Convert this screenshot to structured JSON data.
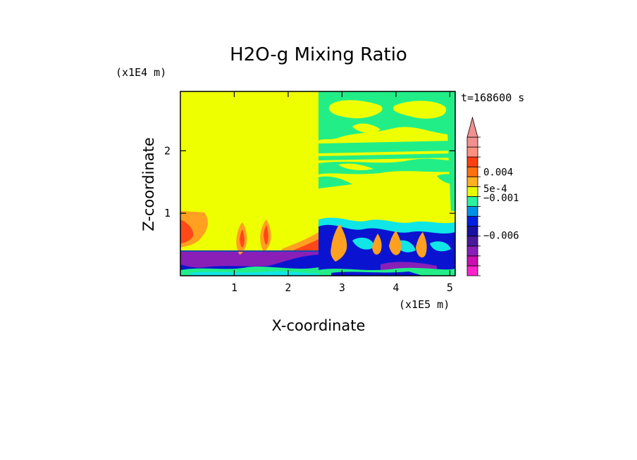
{
  "chart_data": {
    "type": "heatmap",
    "title": "H2O-g Mixing Ratio",
    "xlabel": "X-coordinate",
    "ylabel": "Z-coordinate",
    "x_scale_label": "(x1E5 m)",
    "y_scale_label": "(x1E4 m)",
    "time_label": "t=168600 s",
    "xlim": [
      0,
      5.1
    ],
    "ylim": [
      0,
      2.95
    ],
    "x_ticks": [
      {
        "value": 1,
        "label": "1"
      },
      {
        "value": 2,
        "label": "2"
      },
      {
        "value": 3,
        "label": "3"
      },
      {
        "value": 4,
        "label": "4"
      },
      {
        "value": 5,
        "label": "5"
      }
    ],
    "y_ticks": [
      {
        "value": 1,
        "label": "1"
      },
      {
        "value": 2,
        "label": "2"
      }
    ],
    "colorbar": {
      "colors": [
        "#ff22cc",
        "#cc0fb0",
        "#8a1fb8",
        "#4a1a9a",
        "#1a10a0",
        "#0020e0",
        "#0090e8",
        "#2af2a0",
        "#e8ff00",
        "#ffb020",
        "#ff7010",
        "#ff4010",
        "#ff9080",
        "#f09090"
      ],
      "labels": [
        {
          "text": "0.004",
          "level": 10.5
        },
        {
          "text": "5e-4",
          "level": 8.8
        },
        {
          "text": "−0.001",
          "level": 7.9
        },
        {
          "text": "−0.006",
          "level": 4.1
        }
      ],
      "extend": "max"
    },
    "palette": {
      "yellow": "#eeff00",
      "green": "#22ee88",
      "cyan": "#11e6e6",
      "blue": "#0a14d0",
      "purple": "#8a1fb8",
      "orange": "#ffa020",
      "red": "#ff4818"
    }
  }
}
